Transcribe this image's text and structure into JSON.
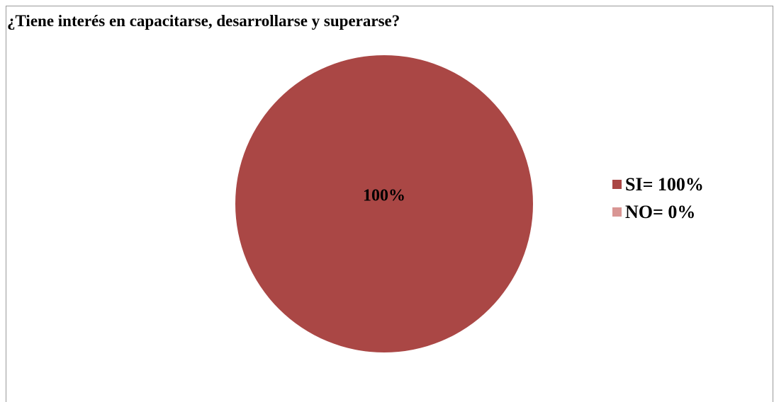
{
  "chart_data": {
    "type": "pie",
    "title": "¿Tiene interés en capacitarse, desarrollarse y superarse?",
    "categories": [
      "SI",
      "NO"
    ],
    "values": [
      100,
      0
    ],
    "data_labels": [
      "100%"
    ],
    "legend": {
      "placement": "right",
      "entries": [
        "SI= 100%",
        "NO= 0%"
      ]
    },
    "colors": [
      "#AA4745",
      "#D99694"
    ]
  }
}
